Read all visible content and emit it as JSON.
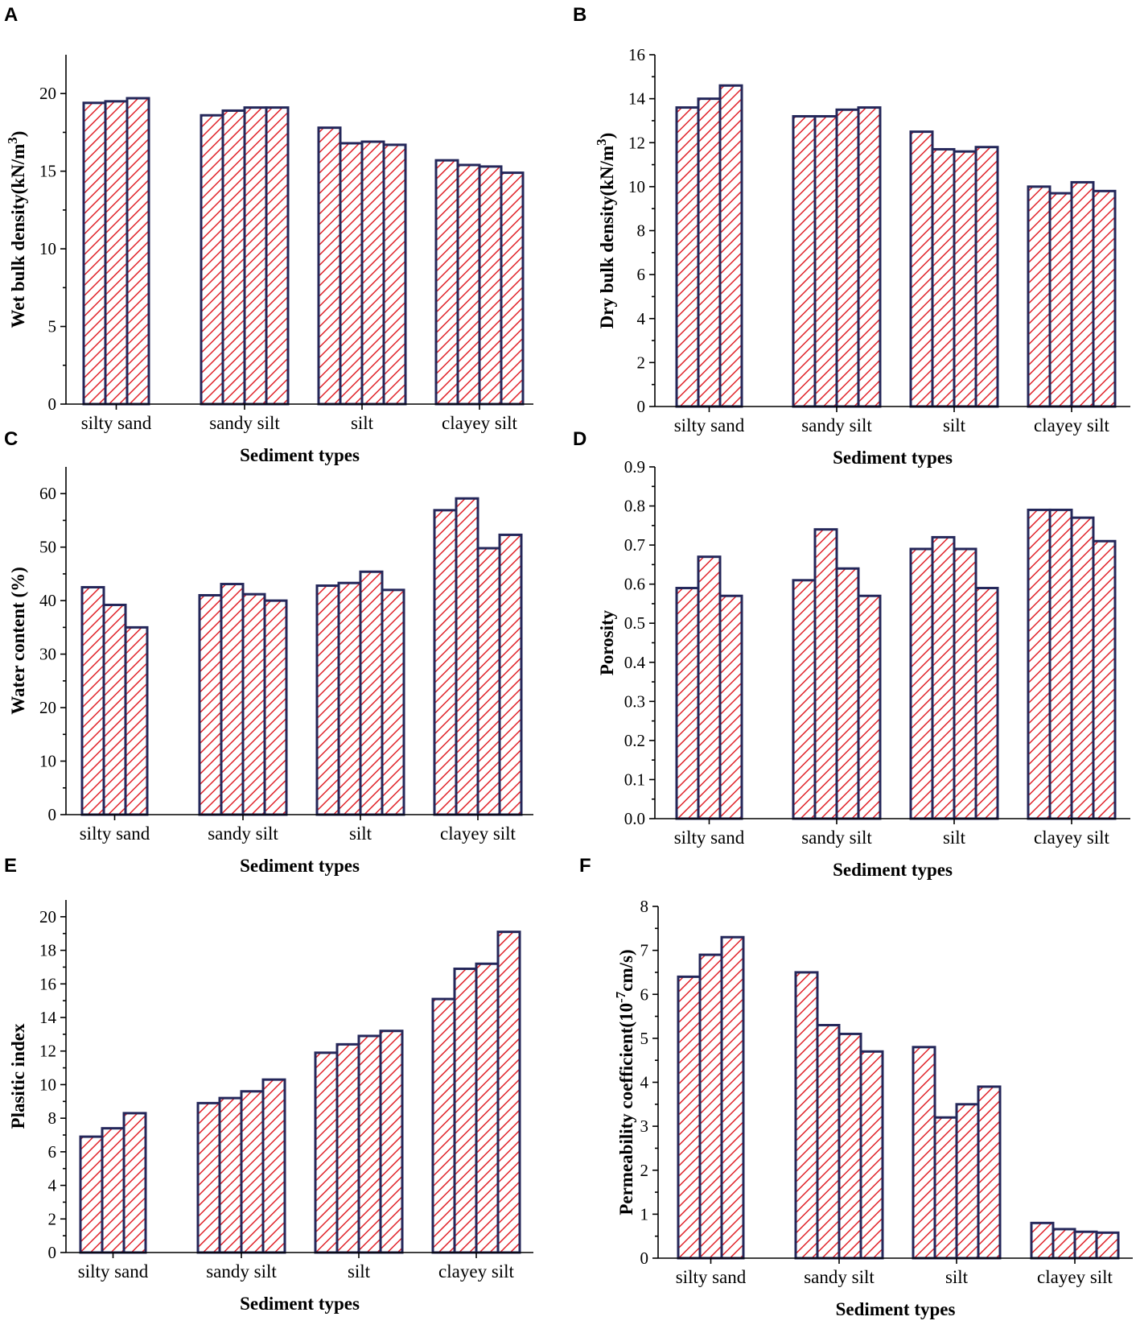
{
  "colors": {
    "bar_stroke": "#24275a",
    "hatch": "#e0242b",
    "axis": "#000000"
  },
  "chart_data": [
    {
      "panel": "A",
      "type": "bar",
      "categories": [
        "silty sand",
        "sandy silt",
        "silt",
        "clayey silt"
      ],
      "groups": [
        [
          19.4,
          19.5,
          19.7
        ],
        [
          18.6,
          18.9,
          19.1,
          19.1
        ],
        [
          17.8,
          16.8,
          16.9,
          16.7
        ],
        [
          15.7,
          15.4,
          15.3,
          14.9
        ]
      ],
      "ylabel": "Wet bulk density(kN/m",
      "ylabel_sup": "3",
      "ylabel_end": ")",
      "xlabel": "Sediment types",
      "ylim": [
        0,
        22.5
      ],
      "yticks": [
        0,
        5,
        10,
        15,
        20
      ],
      "ytick_labels": [
        "0",
        "5",
        "10",
        "15",
        "20"
      ]
    },
    {
      "panel": "B",
      "type": "bar",
      "categories": [
        "silty sand",
        "sandy silt",
        "silt",
        "clayey silt"
      ],
      "groups": [
        [
          13.6,
          14.0,
          14.6
        ],
        [
          13.2,
          13.2,
          13.5,
          13.6
        ],
        [
          12.5,
          11.7,
          11.6,
          11.8
        ],
        [
          10.0,
          9.7,
          10.2,
          9.8
        ]
      ],
      "ylabel": "Dry bulk density(kN/m",
      "ylabel_sup": "3",
      "ylabel_end": ")",
      "xlabel": "Sediment types",
      "ylim": [
        0,
        16
      ],
      "yticks": [
        0,
        2,
        4,
        6,
        8,
        10,
        12,
        14,
        16
      ],
      "ytick_labels": [
        "0",
        "2",
        "4",
        "6",
        "8",
        "10",
        "12",
        "14",
        "16"
      ]
    },
    {
      "panel": "C",
      "type": "bar",
      "categories": [
        "silty sand",
        "sandy silt",
        "silt",
        "clayey silt"
      ],
      "groups": [
        [
          42.5,
          39.2,
          35.0
        ],
        [
          41.0,
          43.1,
          41.2,
          40.0
        ],
        [
          42.8,
          43.3,
          45.4,
          42.0
        ],
        [
          56.9,
          59.1,
          49.8,
          52.3
        ]
      ],
      "ylabel": "Water content (%)",
      "ylabel_sup": "",
      "ylabel_end": "",
      "xlabel": "Sediment types",
      "ylim": [
        0,
        65
      ],
      "yticks": [
        0,
        10,
        20,
        30,
        40,
        50,
        60
      ],
      "ytick_labels": [
        "0",
        "10",
        "20",
        "30",
        "40",
        "50",
        "60"
      ]
    },
    {
      "panel": "D",
      "type": "bar",
      "categories": [
        "silty sand",
        "sandy silt",
        "silt",
        "clayey silt"
      ],
      "groups": [
        [
          0.59,
          0.67,
          0.57
        ],
        [
          0.61,
          0.74,
          0.64,
          0.57
        ],
        [
          0.69,
          0.72,
          0.69,
          0.59
        ],
        [
          0.79,
          0.79,
          0.77,
          0.71
        ]
      ],
      "ylabel": "Porosity",
      "ylabel_sup": "",
      "ylabel_end": "",
      "xlabel": "Sediment types",
      "ylim": [
        0,
        0.9
      ],
      "yticks": [
        0,
        0.1,
        0.2,
        0.3,
        0.4,
        0.5,
        0.6,
        0.7,
        0.8,
        0.9
      ],
      "ytick_labels": [
        "0.0",
        "0.1",
        "0.2",
        "0.3",
        "0.4",
        "0.5",
        "0.6",
        "0.7",
        "0.8",
        "0.9"
      ]
    },
    {
      "panel": "E",
      "type": "bar",
      "categories": [
        "silty sand",
        "sandy silt",
        "silt",
        "clayey silt"
      ],
      "groups": [
        [
          6.9,
          7.4,
          8.3
        ],
        [
          8.9,
          9.2,
          9.6,
          10.3
        ],
        [
          11.9,
          12.4,
          12.9,
          13.2
        ],
        [
          15.1,
          16.9,
          17.2,
          19.1
        ]
      ],
      "ylabel": "Plasitic index",
      "ylabel_sup": "",
      "ylabel_end": "",
      "xlabel": "Sediment types",
      "ylim": [
        0,
        21
      ],
      "yticks": [
        0,
        2,
        4,
        6,
        8,
        10,
        12,
        14,
        16,
        18,
        20
      ],
      "ytick_labels": [
        "0",
        "2",
        "4",
        "6",
        "8",
        "10",
        "12",
        "14",
        "16",
        "18",
        "20"
      ]
    },
    {
      "panel": "F",
      "type": "bar",
      "categories": [
        "silty sand",
        "sandy silt",
        "silt",
        "clayey silt"
      ],
      "groups": [
        [
          6.4,
          6.9,
          7.3
        ],
        [
          6.5,
          5.3,
          5.1,
          4.7
        ],
        [
          4.8,
          3.2,
          3.5,
          3.9
        ],
        [
          0.8,
          0.66,
          0.6,
          0.58
        ]
      ],
      "ylabel": "Permeability coefficient(10",
      "ylabel_sup": "-7",
      "ylabel_end": "cm/s)",
      "xlabel": "Sediment types",
      "ylim": [
        0,
        8
      ],
      "yticks": [
        0,
        1,
        2,
        3,
        4,
        5,
        6,
        7,
        8
      ],
      "ytick_labels": [
        "0",
        "1",
        "2",
        "3",
        "4",
        "5",
        "6",
        "7",
        "8"
      ]
    }
  ]
}
